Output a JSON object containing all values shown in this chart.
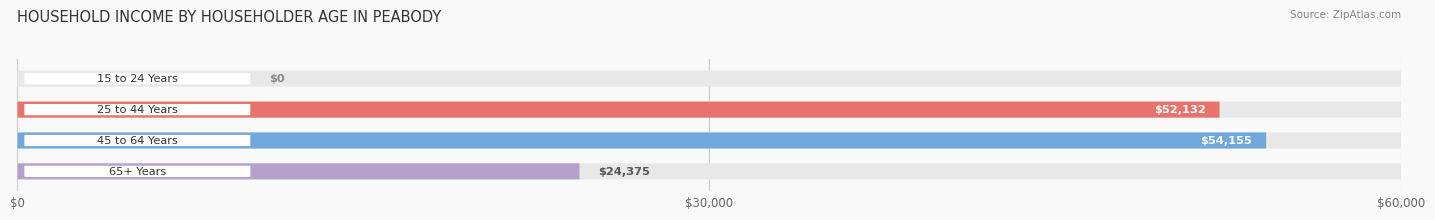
{
  "title": "HOUSEHOLD INCOME BY HOUSEHOLDER AGE IN PEABODY",
  "source": "Source: ZipAtlas.com",
  "categories": [
    "15 to 24 Years",
    "25 to 44 Years",
    "45 to 64 Years",
    "65+ Years"
  ],
  "values": [
    0,
    52132,
    54155,
    24375
  ],
  "bar_colors": [
    "#f5c9a0",
    "#e8736b",
    "#6fa8dc",
    "#b8a0cc"
  ],
  "bar_bg_color": "#e8e8e8",
  "xlim": [
    0,
    60000
  ],
  "xticks": [
    0,
    30000,
    60000
  ],
  "xtick_labels": [
    "$0",
    "$30,000",
    "$60,000"
  ],
  "background_color": "#f9f9f9",
  "title_fontsize": 10.5,
  "bar_height": 0.52,
  "value_labels": [
    "$0",
    "$52,132",
    "$54,155",
    "$24,375"
  ]
}
